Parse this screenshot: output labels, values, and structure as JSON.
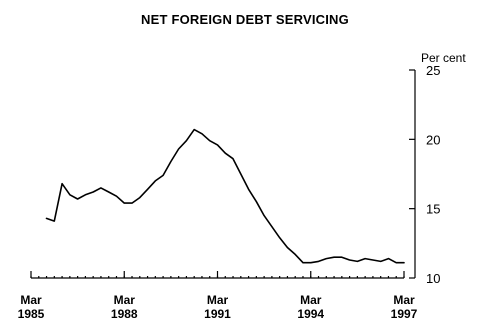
{
  "chart_data": {
    "type": "line",
    "title": "NET FOREIGN DEBT SERVICING",
    "ylabel": "Per cent",
    "xlabel": "",
    "y_axis_position": "right",
    "ylim": [
      10,
      25
    ],
    "y_ticks": [
      10,
      15,
      20,
      25
    ],
    "x_ticks": [
      {
        "value": 1985.25,
        "line1": "Mar",
        "line2": "1985"
      },
      {
        "value": 1988.25,
        "line1": "Mar",
        "line2": "1988"
      },
      {
        "value": 1991.25,
        "line1": "Mar",
        "line2": "1991"
      },
      {
        "value": 1994.25,
        "line1": "Mar",
        "line2": "1994"
      },
      {
        "value": 1997.25,
        "line1": "Mar",
        "line2": "1997"
      }
    ],
    "xlim": [
      1985.25,
      1997.25
    ],
    "grid": false,
    "legend": "none",
    "series": [
      {
        "x": [
          1985.75,
          1986.0,
          1986.25,
          1986.5,
          1986.75,
          1987.0,
          1987.25,
          1987.5,
          1987.75,
          1988.0,
          1988.25,
          1988.5,
          1988.75,
          1989.0,
          1989.25,
          1989.5,
          1989.75,
          1990.0,
          1990.25,
          1990.5,
          1990.75,
          1991.0,
          1991.25,
          1991.5,
          1991.75,
          1992.0,
          1992.25,
          1992.5,
          1992.75,
          1993.0,
          1993.25,
          1993.5,
          1993.75,
          1994.0,
          1994.25,
          1994.5,
          1994.75,
          1995.0,
          1995.25,
          1995.5,
          1995.75,
          1996.0,
          1996.25,
          1996.5,
          1996.75,
          1997.0,
          1997.25
        ],
        "values": [
          14.3,
          14.1,
          16.8,
          16.0,
          15.7,
          16.0,
          16.2,
          16.5,
          16.2,
          15.9,
          15.4,
          15.4,
          15.8,
          16.4,
          17.0,
          17.4,
          18.4,
          19.3,
          19.9,
          20.7,
          20.4,
          19.9,
          19.6,
          19.0,
          18.6,
          17.5,
          16.4,
          15.5,
          14.5,
          13.7,
          12.9,
          12.2,
          11.7,
          11.1,
          11.1,
          11.2,
          11.4,
          11.5,
          11.5,
          11.3,
          11.2,
          11.4,
          11.3,
          11.2,
          11.4,
          11.1,
          11.1
        ]
      }
    ]
  }
}
